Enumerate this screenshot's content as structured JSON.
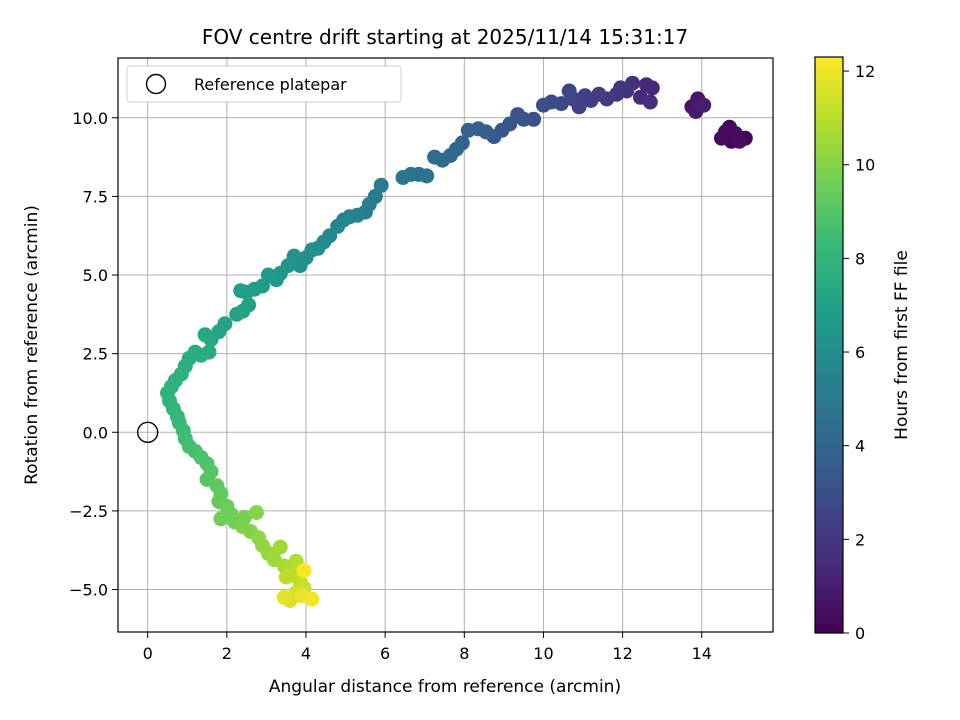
{
  "chart_data": {
    "type": "scatter",
    "title": "FOV centre drift starting at 2025/11/14 15:31:17",
    "xlabel": "Angular distance from reference (arcmin)",
    "ylabel": "Rotation from reference (arcmin)",
    "xlim": [
      -0.75,
      15.8
    ],
    "ylim": [
      -6.35,
      11.9
    ],
    "xticks": [
      0,
      2,
      4,
      6,
      8,
      10,
      12,
      14
    ],
    "xtick_labels": [
      "0",
      "2",
      "4",
      "6",
      "8",
      "10",
      "12",
      "14"
    ],
    "yticks": [
      -5.0,
      -2.5,
      0.0,
      2.5,
      5.0,
      7.5,
      10.0
    ],
    "ytick_labels": [
      "−5.0",
      "−2.5",
      "0.0",
      "2.5",
      "5.0",
      "7.5",
      "10.0"
    ],
    "grid": true,
    "legend": {
      "position": "top-left",
      "label": "Reference platepar"
    },
    "reference_point": {
      "x": 0,
      "y": 0
    },
    "colorbar": {
      "label": "Hours from first FF file",
      "min": 0,
      "max": 12.3,
      "colormap": "viridis",
      "ticks": [
        0,
        2,
        4,
        6,
        8,
        10,
        12
      ],
      "tick_labels": [
        "0",
        "2",
        "4",
        "6",
        "8",
        "10",
        "12"
      ]
    },
    "colors": {
      "viridis": [
        "#440154",
        "#482878",
        "#3e4989",
        "#31688e",
        "#26828e",
        "#1f9e89",
        "#35b779",
        "#6ece58",
        "#b5de2b",
        "#fde725"
      ]
    },
    "series": [
      {
        "name": "FOV centre drift",
        "points": [
          [
            14.9,
            9.4,
            0.05
          ],
          [
            15.1,
            9.35,
            0.1
          ],
          [
            14.75,
            9.25,
            0.15
          ],
          [
            14.6,
            9.55,
            0.2
          ],
          [
            14.7,
            9.7,
            0.25
          ],
          [
            14.5,
            9.35,
            0.3
          ],
          [
            14.85,
            9.5,
            0.35
          ],
          [
            14.95,
            9.25,
            0.4
          ],
          [
            13.95,
            10.45,
            0.6
          ],
          [
            13.75,
            10.35,
            0.7
          ],
          [
            13.9,
            10.6,
            0.8
          ],
          [
            13.85,
            10.2,
            0.9
          ],
          [
            14.05,
            10.4,
            1.0
          ],
          [
            12.75,
            10.95,
            1.3
          ],
          [
            12.6,
            11.05,
            1.4
          ],
          [
            12.45,
            10.65,
            1.5
          ],
          [
            12.7,
            10.5,
            1.6
          ],
          [
            12.25,
            11.1,
            1.7
          ],
          [
            12.1,
            10.85,
            1.8
          ],
          [
            11.95,
            10.95,
            1.9
          ],
          [
            11.85,
            10.75,
            2.0
          ],
          [
            11.6,
            10.6,
            2.1
          ],
          [
            11.4,
            10.75,
            2.2
          ],
          [
            11.2,
            10.55,
            2.3
          ],
          [
            11.05,
            10.7,
            2.4
          ],
          [
            10.9,
            10.35,
            2.5
          ],
          [
            10.75,
            10.6,
            2.55
          ],
          [
            10.65,
            10.85,
            2.6
          ],
          [
            10.45,
            10.45,
            2.7
          ],
          [
            10.2,
            10.5,
            2.8
          ],
          [
            10.0,
            10.4,
            2.9
          ],
          [
            9.75,
            9.95,
            3.0
          ],
          [
            9.5,
            9.95,
            3.1
          ],
          [
            9.35,
            10.1,
            3.2
          ],
          [
            9.15,
            9.8,
            3.3
          ],
          [
            8.95,
            9.6,
            3.4
          ],
          [
            8.75,
            9.4,
            3.5
          ],
          [
            8.55,
            9.55,
            3.6
          ],
          [
            8.35,
            9.65,
            3.7
          ],
          [
            8.1,
            9.6,
            3.8
          ],
          [
            7.95,
            9.2,
            3.9
          ],
          [
            7.8,
            9.0,
            4.0
          ],
          [
            7.65,
            8.8,
            4.1
          ],
          [
            7.45,
            8.65,
            4.2
          ],
          [
            7.25,
            8.75,
            4.3
          ],
          [
            7.05,
            8.15,
            4.5
          ],
          [
            6.85,
            8.2,
            4.6
          ],
          [
            6.65,
            8.2,
            4.7
          ],
          [
            6.45,
            8.1,
            4.8
          ],
          [
            5.9,
            7.85,
            5.0
          ],
          [
            5.75,
            7.5,
            5.1
          ],
          [
            5.6,
            7.25,
            5.2
          ],
          [
            5.5,
            7.0,
            5.3
          ],
          [
            5.3,
            6.9,
            5.4
          ],
          [
            5.1,
            6.85,
            5.5
          ],
          [
            4.95,
            6.75,
            5.6
          ],
          [
            4.8,
            6.55,
            5.7
          ],
          [
            4.6,
            6.25,
            5.8
          ],
          [
            4.45,
            6.05,
            5.9
          ],
          [
            4.3,
            5.85,
            6.0
          ],
          [
            4.15,
            5.8,
            6.05
          ],
          [
            4.0,
            5.55,
            6.1
          ],
          [
            3.85,
            5.3,
            6.2
          ],
          [
            3.7,
            5.6,
            6.3
          ],
          [
            3.55,
            5.3,
            6.4
          ],
          [
            3.35,
            5.05,
            6.5
          ],
          [
            3.25,
            4.85,
            6.6
          ],
          [
            3.05,
            5.0,
            6.7
          ],
          [
            2.9,
            4.65,
            6.75
          ],
          [
            2.7,
            4.55,
            6.8
          ],
          [
            2.5,
            4.45,
            6.9
          ],
          [
            2.35,
            4.5,
            6.95
          ],
          [
            2.55,
            4.05,
            7.0
          ],
          [
            2.4,
            3.85,
            7.05
          ],
          [
            2.25,
            3.75,
            7.1
          ],
          [
            1.95,
            3.45,
            7.15
          ],
          [
            1.8,
            3.2,
            7.2
          ],
          [
            1.6,
            2.95,
            7.3
          ],
          [
            1.45,
            3.1,
            7.35
          ],
          [
            1.55,
            2.55,
            7.45
          ],
          [
            1.35,
            2.45,
            7.55
          ],
          [
            1.2,
            2.55,
            7.6
          ],
          [
            1.05,
            2.35,
            7.65
          ],
          [
            0.95,
            2.1,
            7.7
          ],
          [
            0.85,
            1.85,
            7.8
          ],
          [
            0.7,
            1.65,
            7.85
          ],
          [
            0.6,
            1.45,
            7.9
          ],
          [
            0.5,
            1.25,
            7.95
          ],
          [
            0.55,
            1.0,
            8.0
          ],
          [
            0.65,
            0.75,
            8.1
          ],
          [
            0.75,
            0.5,
            8.15
          ],
          [
            0.8,
            0.3,
            8.25
          ],
          [
            0.9,
            0.05,
            8.35
          ],
          [
            0.95,
            -0.2,
            8.45
          ],
          [
            1.05,
            -0.45,
            8.55
          ],
          [
            1.2,
            -0.6,
            8.65
          ],
          [
            1.35,
            -0.8,
            8.75
          ],
          [
            1.5,
            -1.0,
            8.85
          ],
          [
            1.6,
            -1.25,
            8.95
          ],
          [
            1.5,
            -1.5,
            9.05
          ],
          [
            1.75,
            -1.7,
            9.15
          ],
          [
            1.85,
            -1.95,
            9.25
          ],
          [
            1.8,
            -2.2,
            9.35
          ],
          [
            2.0,
            -2.35,
            9.45
          ],
          [
            2.1,
            -2.6,
            9.55
          ],
          [
            1.85,
            -2.75,
            9.6
          ],
          [
            2.2,
            -2.85,
            9.65
          ],
          [
            2.45,
            -2.7,
            9.75
          ],
          [
            2.4,
            -3.0,
            9.85
          ],
          [
            2.6,
            -3.15,
            9.95
          ],
          [
            2.75,
            -2.55,
            10.05
          ],
          [
            2.8,
            -3.35,
            10.15
          ],
          [
            2.9,
            -3.6,
            10.25
          ],
          [
            3.05,
            -3.85,
            10.35
          ],
          [
            3.2,
            -4.05,
            10.45
          ],
          [
            3.35,
            -3.65,
            10.55
          ],
          [
            3.45,
            -4.25,
            10.65
          ],
          [
            3.6,
            -4.35,
            10.75
          ],
          [
            3.75,
            -4.1,
            10.85
          ],
          [
            3.7,
            -4.55,
            10.95
          ],
          [
            3.5,
            -4.6,
            11.05
          ],
          [
            3.85,
            -4.75,
            11.15
          ],
          [
            3.95,
            -4.95,
            11.3
          ],
          [
            3.75,
            -5.1,
            11.45
          ],
          [
            3.6,
            -5.35,
            11.6
          ],
          [
            3.45,
            -5.25,
            11.75
          ],
          [
            3.9,
            -5.2,
            11.9
          ],
          [
            4.15,
            -5.3,
            12.05
          ],
          [
            3.95,
            -4.4,
            12.2
          ]
        ]
      }
    ]
  }
}
